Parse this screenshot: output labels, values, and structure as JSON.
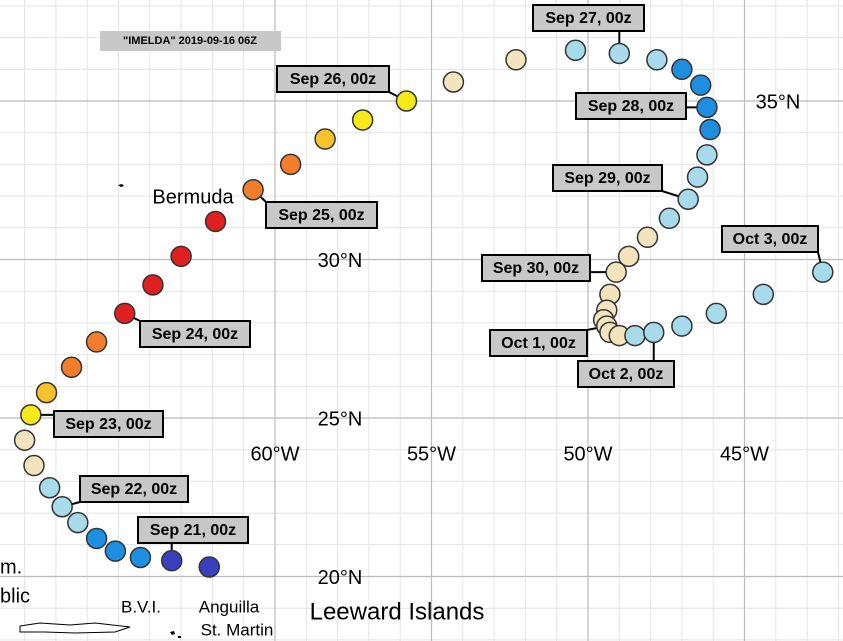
{
  "title": "\"IMELDA\" 2019-09-16 06Z",
  "lat_ticks": [
    {
      "value": 35,
      "label": "35°N"
    },
    {
      "value": 30,
      "label": "30°N"
    },
    {
      "value": 25,
      "label": "25°N"
    },
    {
      "value": 20,
      "label": "20°N"
    }
  ],
  "lon_ticks": [
    {
      "value": -60,
      "label": "60°W"
    },
    {
      "value": -55,
      "label": "55°W"
    },
    {
      "value": -50,
      "label": "50°W"
    },
    {
      "value": -45,
      "label": "45°W"
    }
  ],
  "places": [
    "Bermuda",
    "Leeward Islands",
    "B.V.I.",
    "Anguilla",
    "St. Martin",
    "m.",
    "blic"
  ],
  "date_labels": [
    "Sep 21, 00z",
    "Sep 22, 00z",
    "Sep 23, 00z",
    "Sep 24, 00z",
    "Sep 25, 00z",
    "Sep 26, 00z",
    "Sep 27, 00z",
    "Sep 28, 00z",
    "Sep 29, 00z",
    "Sep 30, 00z",
    "Oct 1, 00z",
    "Oct 2, 00z",
    "Oct 3, 00z"
  ],
  "track": [
    {
      "lon": -62.1,
      "lat": 20.3,
      "color": "#3b3fbd"
    },
    {
      "lon": -63.3,
      "lat": 20.5,
      "color": "#3b3fbd"
    },
    {
      "lon": -64.3,
      "lat": 20.6,
      "color": "#1e8fe0"
    },
    {
      "lon": -65.1,
      "lat": 20.8,
      "color": "#1e8fe0"
    },
    {
      "lon": -65.7,
      "lat": 21.2,
      "color": "#1e8fe0"
    },
    {
      "lon": -66.3,
      "lat": 21.7,
      "color": "#a7daea"
    },
    {
      "lon": -66.8,
      "lat": 22.2,
      "color": "#a7daea"
    },
    {
      "lon": -67.2,
      "lat": 22.8,
      "color": "#a7daea"
    },
    {
      "lon": -67.7,
      "lat": 23.5,
      "color": "#f3e4bd"
    },
    {
      "lon": -68.0,
      "lat": 24.3,
      "color": "#f3e4bd"
    },
    {
      "lon": -67.8,
      "lat": 25.1,
      "color": "#f7ea1a"
    },
    {
      "lon": -67.3,
      "lat": 25.8,
      "color": "#f9c22c"
    },
    {
      "lon": -66.5,
      "lat": 26.6,
      "color": "#f47d2c"
    },
    {
      "lon": -65.7,
      "lat": 27.4,
      "color": "#f47d2c"
    },
    {
      "lon": -64.8,
      "lat": 28.3,
      "color": "#e02020"
    },
    {
      "lon": -63.9,
      "lat": 29.2,
      "color": "#e02020"
    },
    {
      "lon": -63.0,
      "lat": 30.1,
      "color": "#e02020"
    },
    {
      "lon": -61.9,
      "lat": 31.2,
      "color": "#e02020"
    },
    {
      "lon": -60.7,
      "lat": 32.2,
      "color": "#f47d2c"
    },
    {
      "lon": -59.5,
      "lat": 33.0,
      "color": "#f47d2c"
    },
    {
      "lon": -58.4,
      "lat": 33.8,
      "color": "#f9c22c"
    },
    {
      "lon": -57.2,
      "lat": 34.4,
      "color": "#f7ea1a"
    },
    {
      "lon": -55.8,
      "lat": 35.0,
      "color": "#f7ea1a"
    },
    {
      "lon": -54.3,
      "lat": 35.6,
      "color": "#f3e4bd"
    },
    {
      "lon": -52.3,
      "lat": 36.3,
      "color": "#f3e4bd"
    },
    {
      "lon": -50.4,
      "lat": 36.6,
      "color": "#a7daea"
    },
    {
      "lon": -49.0,
      "lat": 36.5,
      "color": "#a7daea"
    },
    {
      "lon": -47.8,
      "lat": 36.3,
      "color": "#a7daea"
    },
    {
      "lon": -47.0,
      "lat": 36.0,
      "color": "#1e8fe0"
    },
    {
      "lon": -46.4,
      "lat": 35.5,
      "color": "#1e8fe0"
    },
    {
      "lon": -46.2,
      "lat": 34.8,
      "color": "#1e8fe0"
    },
    {
      "lon": -46.1,
      "lat": 34.1,
      "color": "#1e8fe0"
    },
    {
      "lon": -46.2,
      "lat": 33.3,
      "color": "#a7daea"
    },
    {
      "lon": -46.5,
      "lat": 32.6,
      "color": "#a7daea"
    },
    {
      "lon": -46.8,
      "lat": 31.9,
      "color": "#a7daea"
    },
    {
      "lon": -47.4,
      "lat": 31.3,
      "color": "#a7daea"
    },
    {
      "lon": -48.1,
      "lat": 30.7,
      "color": "#f3e4bd"
    },
    {
      "lon": -48.7,
      "lat": 30.1,
      "color": "#f3e4bd"
    },
    {
      "lon": -49.1,
      "lat": 29.6,
      "color": "#f3e4bd"
    },
    {
      "lon": -49.3,
      "lat": 28.9,
      "color": "#f3e4bd"
    },
    {
      "lon": -49.4,
      "lat": 28.4,
      "color": "#f3e4bd"
    },
    {
      "lon": -49.5,
      "lat": 28.1,
      "color": "#f3e4bd"
    },
    {
      "lon": -49.4,
      "lat": 27.9,
      "color": "#f3e4bd"
    },
    {
      "lon": -49.3,
      "lat": 27.7,
      "color": "#f3e4bd"
    },
    {
      "lon": -49.0,
      "lat": 27.6,
      "color": "#f3e4bd"
    },
    {
      "lon": -48.5,
      "lat": 27.6,
      "color": "#a7daea"
    },
    {
      "lon": -47.9,
      "lat": 27.7,
      "color": "#a7daea"
    },
    {
      "lon": -47.0,
      "lat": 27.9,
      "color": "#a7daea"
    },
    {
      "lon": -45.9,
      "lat": 28.3,
      "color": "#a7daea"
    },
    {
      "lon": -44.4,
      "lat": 28.9,
      "color": "#a7daea"
    },
    {
      "lon": -42.5,
      "lat": 29.6,
      "color": "#a7daea"
    }
  ]
}
